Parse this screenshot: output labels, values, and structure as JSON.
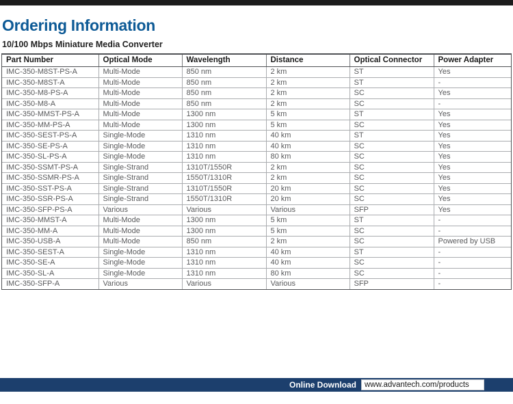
{
  "page": {
    "title": "Ordering Information",
    "subtitle": "10/100 Mbps Miniature Media Converter"
  },
  "table": {
    "columns": [
      "Part Number",
      "Optical Mode",
      "Wavelength",
      "Distance",
      "Optical Connector",
      "Power Adapter"
    ],
    "rows": [
      [
        "IMC-350-M8ST-PS-A",
        "Multi-Mode",
        "850 nm",
        "2 km",
        "ST",
        "Yes"
      ],
      [
        "IMC-350-M8ST-A",
        "Multi-Mode",
        "850 nm",
        "2 km",
        "ST",
        "-"
      ],
      [
        "IMC-350-M8-PS-A",
        "Multi-Mode",
        "850 nm",
        "2 km",
        "SC",
        "Yes"
      ],
      [
        "IMC-350-M8-A",
        "Multi-Mode",
        "850 nm",
        "2 km",
        "SC",
        "-"
      ],
      [
        "IMC-350-MMST-PS-A",
        "Multi-Mode",
        "1300 nm",
        "5 km",
        "ST",
        "Yes"
      ],
      [
        "IMC-350-MM-PS-A",
        "Multi-Mode",
        "1300 nm",
        "5 km",
        "SC",
        "Yes"
      ],
      [
        "IMC-350-SEST-PS-A",
        "Single-Mode",
        "1310 nm",
        "40 km",
        "ST",
        "Yes"
      ],
      [
        "IMC-350-SE-PS-A",
        "Single-Mode",
        "1310 nm",
        "40 km",
        "SC",
        "Yes"
      ],
      [
        "IMC-350-SL-PS-A",
        "Single-Mode",
        "1310 nm",
        "80 km",
        "SC",
        "Yes"
      ],
      [
        "IMC-350-SSMT-PS-A",
        "Single-Strand",
        "1310T/1550R",
        "2 km",
        "SC",
        "Yes"
      ],
      [
        "IMC-350-SSMR-PS-A",
        "Single-Strand",
        "1550T/1310R",
        "2 km",
        "SC",
        "Yes"
      ],
      [
        "IMC-350-SST-PS-A",
        "Single-Strand",
        "1310T/1550R",
        "20 km",
        "SC",
        "Yes"
      ],
      [
        "IMC-350-SSR-PS-A",
        "Single-Strand",
        "1550T/1310R",
        "20 km",
        "SC",
        "Yes"
      ],
      [
        "IMC-350-SFP-PS-A",
        "Various",
        "Various",
        "Various",
        "SFP",
        "Yes"
      ],
      [
        "IMC-350-MMST-A",
        "Multi-Mode",
        "1300 nm",
        "5 km",
        "ST",
        "-"
      ],
      [
        "IMC-350-MM-A",
        "Multi-Mode",
        "1300 nm",
        "5 km",
        "SC",
        "-"
      ],
      [
        "IMC-350-USB-A",
        "Multi-Mode",
        "850 nm",
        "2 km",
        "SC",
        "Powered by USB"
      ],
      [
        "IMC-350-SEST-A",
        "Single-Mode",
        "1310 nm",
        "40 km",
        "ST",
        "-"
      ],
      [
        "IMC-350-SE-A",
        "Single-Mode",
        "1310 nm",
        "40 km",
        "SC",
        "-"
      ],
      [
        "IMC-350-SL-A",
        "Single-Mode",
        "1310 nm",
        "80 km",
        "SC",
        "-"
      ],
      [
        "IMC-350-SFP-A",
        "Various",
        "Various",
        "Various",
        "SFP",
        "-"
      ]
    ]
  },
  "footer": {
    "label": "Online Download",
    "url": "www.advantech.com/products"
  },
  "colors": {
    "accent_blue": "#0d5a96",
    "footer_navy": "#1c3f6d",
    "top_rule_black": "#1c1c1c"
  }
}
